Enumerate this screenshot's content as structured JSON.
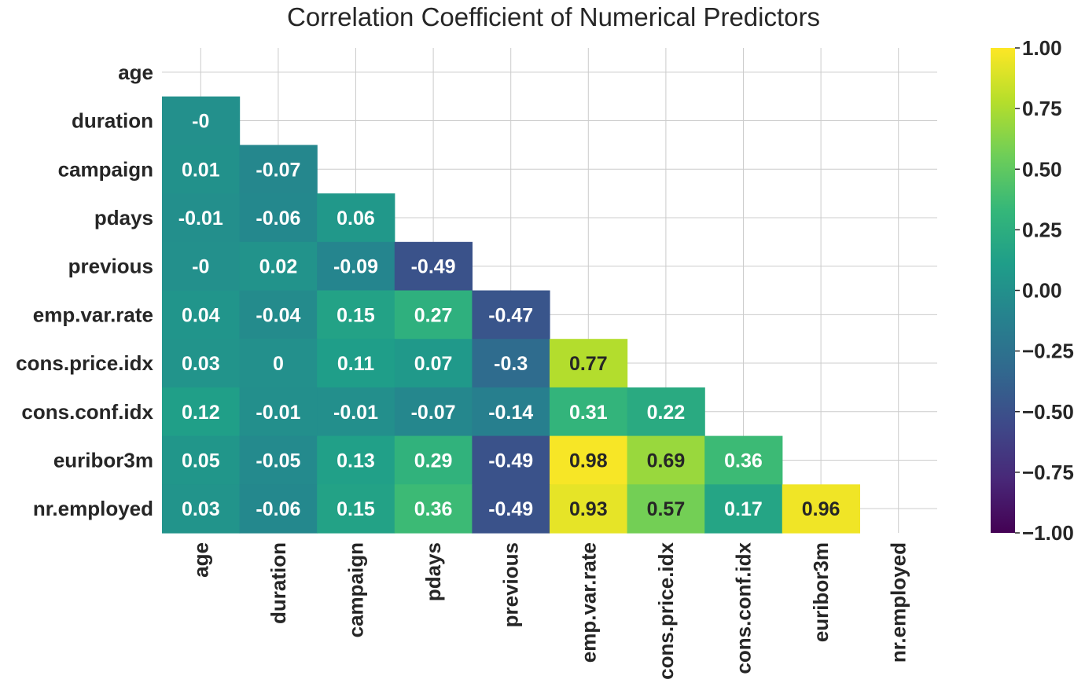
{
  "chart_data": {
    "type": "heatmap",
    "title": "Correlation Coefficient of Numerical Predictors",
    "rows": [
      "age",
      "duration",
      "campaign",
      "pdays",
      "previous",
      "emp.var.rate",
      "cons.price.idx",
      "cons.conf.idx",
      "euribor3m",
      "nr.employed"
    ],
    "columns": [
      "age",
      "duration",
      "campaign",
      "pdays",
      "previous",
      "emp.var.rate",
      "cons.price.idx",
      "cons.conf.idx",
      "euribor3m",
      "nr.employed"
    ],
    "mask": "upper-triangle-including-diagonal",
    "cells": [
      {
        "row": 1,
        "col": 0,
        "value": 0,
        "label": "-0"
      },
      {
        "row": 2,
        "col": 0,
        "value": 0.01,
        "label": "0.01"
      },
      {
        "row": 2,
        "col": 1,
        "value": -0.07,
        "label": "-0.07"
      },
      {
        "row": 3,
        "col": 0,
        "value": -0.01,
        "label": "-0.01"
      },
      {
        "row": 3,
        "col": 1,
        "value": -0.06,
        "label": "-0.06"
      },
      {
        "row": 3,
        "col": 2,
        "value": 0.06,
        "label": "0.06"
      },
      {
        "row": 4,
        "col": 0,
        "value": 0,
        "label": "-0"
      },
      {
        "row": 4,
        "col": 1,
        "value": 0.02,
        "label": "0.02"
      },
      {
        "row": 4,
        "col": 2,
        "value": -0.09,
        "label": "-0.09"
      },
      {
        "row": 4,
        "col": 3,
        "value": -0.49,
        "label": "-0.49"
      },
      {
        "row": 5,
        "col": 0,
        "value": 0.04,
        "label": "0.04"
      },
      {
        "row": 5,
        "col": 1,
        "value": -0.04,
        "label": "-0.04"
      },
      {
        "row": 5,
        "col": 2,
        "value": 0.15,
        "label": "0.15"
      },
      {
        "row": 5,
        "col": 3,
        "value": 0.27,
        "label": "0.27"
      },
      {
        "row": 5,
        "col": 4,
        "value": -0.47,
        "label": "-0.47"
      },
      {
        "row": 6,
        "col": 0,
        "value": 0.03,
        "label": "0.03"
      },
      {
        "row": 6,
        "col": 1,
        "value": 0,
        "label": "0"
      },
      {
        "row": 6,
        "col": 2,
        "value": 0.11,
        "label": "0.11"
      },
      {
        "row": 6,
        "col": 3,
        "value": 0.07,
        "label": "0.07"
      },
      {
        "row": 6,
        "col": 4,
        "value": -0.3,
        "label": "-0.3"
      },
      {
        "row": 6,
        "col": 5,
        "value": 0.77,
        "label": "0.77"
      },
      {
        "row": 7,
        "col": 0,
        "value": 0.12,
        "label": "0.12"
      },
      {
        "row": 7,
        "col": 1,
        "value": -0.01,
        "label": "-0.01"
      },
      {
        "row": 7,
        "col": 2,
        "value": -0.01,
        "label": "-0.01"
      },
      {
        "row": 7,
        "col": 3,
        "value": -0.07,
        "label": "-0.07"
      },
      {
        "row": 7,
        "col": 4,
        "value": -0.14,
        "label": "-0.14"
      },
      {
        "row": 7,
        "col": 5,
        "value": 0.31,
        "label": "0.31"
      },
      {
        "row": 7,
        "col": 6,
        "value": 0.22,
        "label": "0.22"
      },
      {
        "row": 8,
        "col": 0,
        "value": 0.05,
        "label": "0.05"
      },
      {
        "row": 8,
        "col": 1,
        "value": -0.05,
        "label": "-0.05"
      },
      {
        "row": 8,
        "col": 2,
        "value": 0.13,
        "label": "0.13"
      },
      {
        "row": 8,
        "col": 3,
        "value": 0.29,
        "label": "0.29"
      },
      {
        "row": 8,
        "col": 4,
        "value": -0.49,
        "label": "-0.49"
      },
      {
        "row": 8,
        "col": 5,
        "value": 0.98,
        "label": "0.98"
      },
      {
        "row": 8,
        "col": 6,
        "value": 0.69,
        "label": "0.69"
      },
      {
        "row": 8,
        "col": 7,
        "value": 0.36,
        "label": "0.36"
      },
      {
        "row": 9,
        "col": 0,
        "value": 0.03,
        "label": "0.03"
      },
      {
        "row": 9,
        "col": 1,
        "value": -0.06,
        "label": "-0.06"
      },
      {
        "row": 9,
        "col": 2,
        "value": 0.15,
        "label": "0.15"
      },
      {
        "row": 9,
        "col": 3,
        "value": 0.36,
        "label": "0.36"
      },
      {
        "row": 9,
        "col": 4,
        "value": -0.49,
        "label": "-0.49"
      },
      {
        "row": 9,
        "col": 5,
        "value": 0.93,
        "label": "0.93"
      },
      {
        "row": 9,
        "col": 6,
        "value": 0.57,
        "label": "0.57"
      },
      {
        "row": 9,
        "col": 7,
        "value": 0.17,
        "label": "0.17"
      },
      {
        "row": 9,
        "col": 8,
        "value": 0.96,
        "label": "0.96"
      }
    ],
    "colorbar": {
      "colormap": "viridis",
      "range": [
        -1,
        1
      ],
      "ticks": [
        1.0,
        0.75,
        0.5,
        0.25,
        0.0,
        -0.25,
        -0.5,
        -0.75,
        -1.0
      ],
      "tick_labels": [
        "1.00",
        "0.75",
        "0.50",
        "0.25",
        "0.00",
        "−0.25",
        "−0.50",
        "−0.75",
        "−1.00"
      ]
    },
    "grid": true
  }
}
